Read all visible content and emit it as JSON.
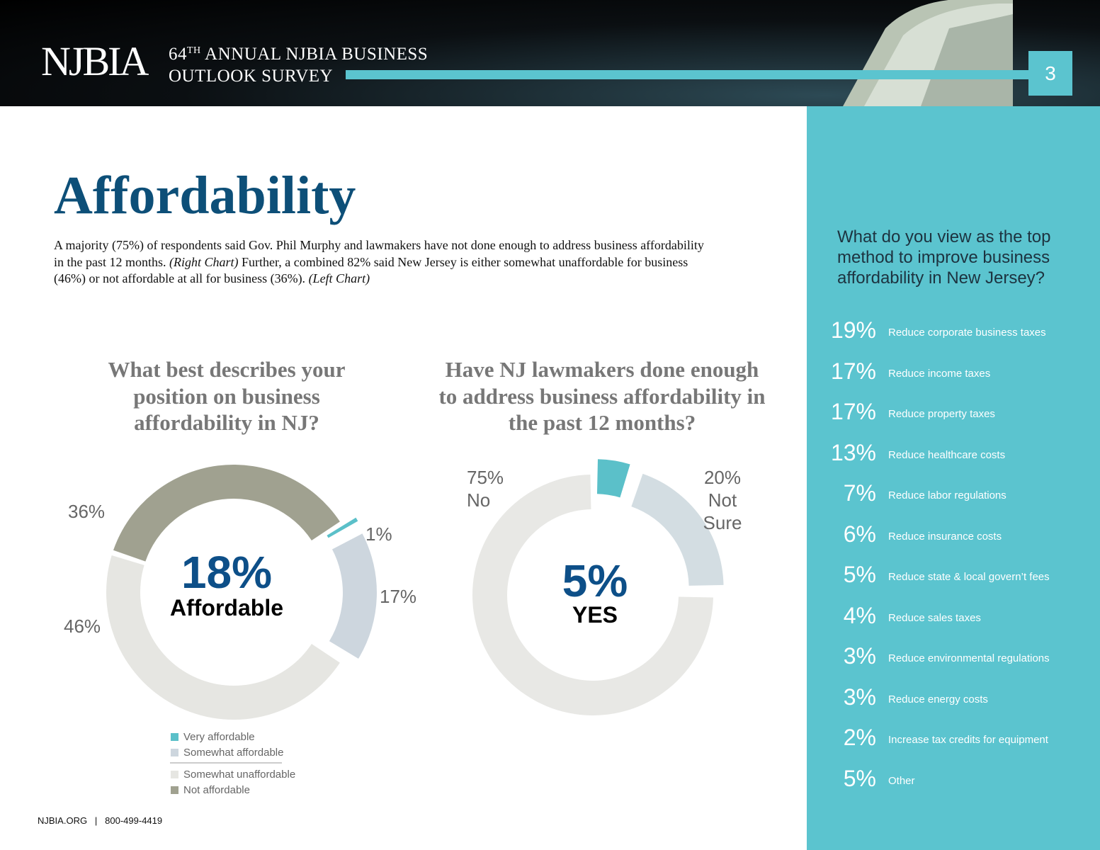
{
  "header": {
    "logo": "NJBIA",
    "survey_number": "64",
    "survey_suffix": "TH",
    "survey_line1": " ANNUAL NJBIA BUSINESS",
    "survey_line2": "OUTLOOK SURVEY",
    "page_number": "3"
  },
  "title": "Affordability",
  "intro": [
    "A majority (75%) of respondents said Gov. Phil Murphy and lawmakers have not done enough to address business affordability in the past 12 months. ",
    "(Right Chart)",
    " Further, a combined 82% said New Jersey is either somewhat unaffordable for business (46%) or not affordable at all for business (36%). ",
    "(Left Chart)"
  ],
  "chart_data": [
    {
      "type": "donut",
      "title": "What best describes your position on business affordability in NJ?",
      "categories": [
        "Very affordable",
        "Somewhat affordable",
        "Somewhat unaffordable",
        "Not affordable"
      ],
      "values": [
        1,
        17,
        46,
        36
      ],
      "value_labels": [
        "1%",
        "17%",
        "46%",
        "36%"
      ],
      "colors": [
        "#5bc0c9",
        "#cdd6de",
        "#e6e6e2",
        "#a0a190"
      ],
      "center_label": "18%",
      "center_text": "Affordable"
    },
    {
      "type": "donut",
      "title": "Have NJ lawmakers done enough to address business affordability in the past 12 months?",
      "categories": [
        "YES",
        "Not Sure",
        "No"
      ],
      "values": [
        5,
        20,
        75
      ],
      "value_labels": [
        "5%",
        "20%",
        "75%"
      ],
      "colors": [
        "#5bc0c9",
        "#d3dde2",
        "#e8e8e5"
      ]
    }
  ],
  "sidebar": {
    "question": "What do you view as the top method to improve business affordability in New Jersey?",
    "items": [
      {
        "percent": "19%",
        "label": "Reduce corporate business taxes"
      },
      {
        "percent": "17%",
        "label": "Reduce income taxes"
      },
      {
        "percent": "17%",
        "label": "Reduce property taxes"
      },
      {
        "percent": "13%",
        "label": "Reduce healthcare costs"
      },
      {
        "percent": "7%",
        "label": "Reduce labor regulations"
      },
      {
        "percent": "6%",
        "label": "Reduce insurance costs"
      },
      {
        "percent": "5%",
        "label": "Reduce state & local govern’t fees"
      },
      {
        "percent": "4%",
        "label": "Reduce sales taxes"
      },
      {
        "percent": "3%",
        "label": "Reduce environmental regulations"
      },
      {
        "percent": "3%",
        "label": "Reduce energy costs"
      },
      {
        "percent": "2%",
        "label": "Increase tax credits for equipment"
      },
      {
        "percent": "5%",
        "label": "Other"
      }
    ]
  },
  "footer": {
    "site": "NJBIA.ORG",
    "separator": "|",
    "phone": "800-499-4419"
  }
}
